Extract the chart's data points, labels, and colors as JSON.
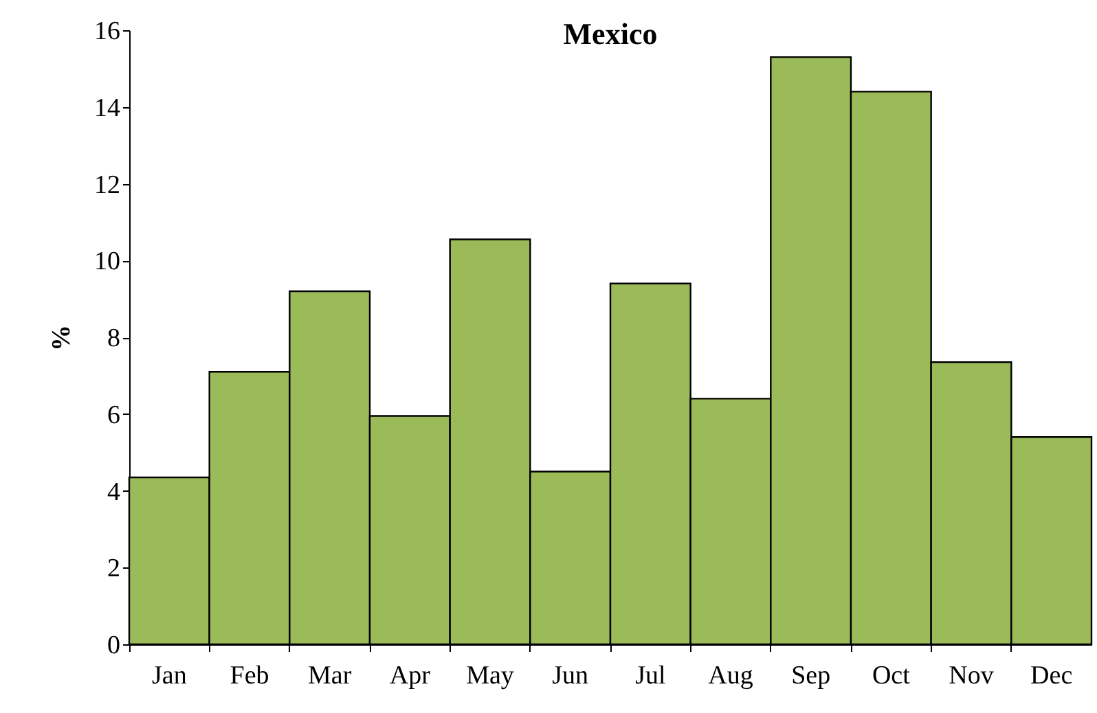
{
  "chart_data": {
    "type": "bar",
    "title": "Mexico",
    "ylabel": "%",
    "categories": [
      "Jan",
      "Feb",
      "Mar",
      "Apr",
      "May",
      "Jun",
      "Jul",
      "Aug",
      "Sep",
      "Oct",
      "Nov",
      "Dec"
    ],
    "values": [
      4.35,
      7.1,
      9.2,
      5.95,
      10.55,
      4.5,
      9.4,
      6.4,
      15.3,
      14.4,
      7.35,
      5.4
    ],
    "color": "#9bbb59",
    "ylim": [
      0,
      16
    ],
    "yticks": [
      0,
      2,
      4,
      6,
      8,
      10,
      12,
      14,
      16
    ],
    "grid": false
  }
}
